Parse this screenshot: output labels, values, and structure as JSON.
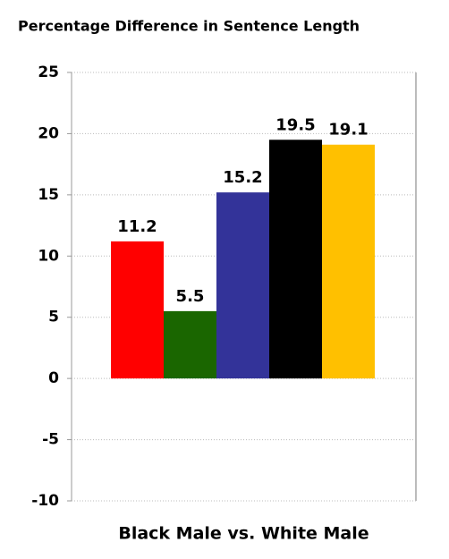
{
  "chart_data": {
    "type": "bar",
    "title": "Percentage Difference in Sentence Length",
    "categories": [
      "Black Male vs. White Male"
    ],
    "series": [
      {
        "color": "#ff0000",
        "values": [
          11.2
        ]
      },
      {
        "color": "#1a6600",
        "values": [
          5.5
        ]
      },
      {
        "color": "#333399",
        "values": [
          15.2
        ]
      },
      {
        "color": "#000000",
        "values": [
          19.5
        ]
      },
      {
        "color": "#ffc000",
        "values": [
          19.1
        ]
      }
    ],
    "ylim": [
      -10,
      25
    ],
    "yticks": [
      -10,
      -5,
      0,
      5,
      10,
      15,
      20,
      25
    ],
    "grid": true
  }
}
